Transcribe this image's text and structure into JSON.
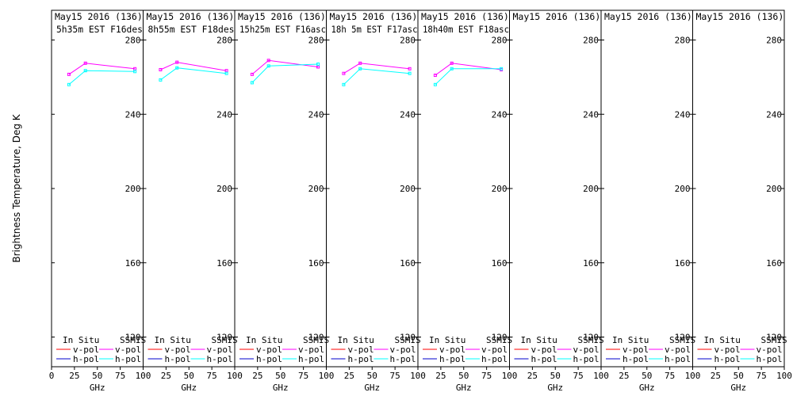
{
  "chart_data": {
    "type": "line",
    "ylabel": "Brightness Temperature, Deg K",
    "xlabel": "GHz",
    "xlim": [
      0,
      100
    ],
    "ylim": [
      104,
      296
    ],
    "xticks": [
      0,
      25,
      50,
      75,
      100
    ],
    "yticks": [
      120,
      160,
      200,
      240,
      280
    ],
    "legend": {
      "in_situ": "In Situ",
      "ssmis": "SSMIS",
      "vpol": "v-pol",
      "hpol": "h-pol",
      "in_situ_colors": {
        "v": "#ff0000",
        "h": "#0000cc"
      },
      "ssmis_colors": {
        "v": "#ff00ff",
        "h": "#00ffff"
      }
    },
    "panels": [
      {
        "title1": "May15 2016 (136)",
        "title2": "5h35m EST F16des",
        "series": [
          {
            "name": "v-pol",
            "x": [
              19,
              37,
              91
            ],
            "y": [
              261.5,
              267.5,
              264.5
            ]
          },
          {
            "name": "h-pol",
            "x": [
              19,
              37,
              91
            ],
            "y": [
              256,
              263.5,
              263
            ]
          }
        ]
      },
      {
        "title1": "May15 2016 (136)",
        "title2": "8h55m EST F18des",
        "series": [
          {
            "name": "v-pol",
            "x": [
              19,
              37,
              91
            ],
            "y": [
              264,
              268,
              263.5
            ]
          },
          {
            "name": "h-pol",
            "x": [
              19,
              37,
              91
            ],
            "y": [
              258.5,
              265,
              262
            ]
          }
        ]
      },
      {
        "title1": "May15 2016 (136)",
        "title2": "15h25m EST F16asc",
        "series": [
          {
            "name": "v-pol",
            "x": [
              19,
              37,
              91
            ],
            "y": [
              261.5,
              269,
              265.5
            ]
          },
          {
            "name": "h-pol",
            "x": [
              19,
              37,
              91
            ],
            "y": [
              257,
              266,
              267
            ]
          }
        ]
      },
      {
        "title1": "May15 2016 (136)",
        "title2": "18h 5m EST F17asc",
        "series": [
          {
            "name": "v-pol",
            "x": [
              19,
              37,
              91
            ],
            "y": [
              262,
              267.5,
              264.5
            ]
          },
          {
            "name": "h-pol",
            "x": [
              19,
              37,
              91
            ],
            "y": [
              256,
              264.5,
              262
            ]
          }
        ]
      },
      {
        "title1": "May15 2016 (136)",
        "title2": "18h40m EST F18asc",
        "series": [
          {
            "name": "v-pol",
            "x": [
              19,
              37,
              91
            ],
            "y": [
              261,
              267.5,
              264
            ]
          },
          {
            "name": "h-pol",
            "x": [
              19,
              37,
              91
            ],
            "y": [
              256,
              264.5,
              264.5
            ]
          }
        ]
      },
      {
        "title1": "May15 2016 (136)",
        "title2": "",
        "series": []
      },
      {
        "title1": "May15 2016 (136)",
        "title2": "",
        "series": []
      },
      {
        "title1": "May15 2016 (136)",
        "title2": "",
        "series": []
      }
    ]
  }
}
